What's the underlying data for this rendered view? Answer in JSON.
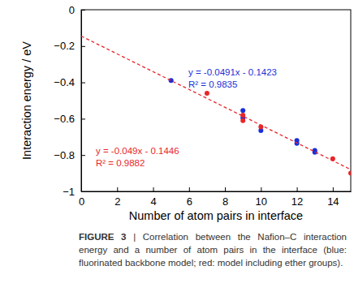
{
  "chart_data": {
    "type": "scatter",
    "x_label": "Number of atom pairs in interface",
    "y_label": "Interaction energy / eV",
    "xlim": [
      0,
      15
    ],
    "xticks": [
      0,
      2,
      4,
      6,
      8,
      10,
      12,
      14
    ],
    "ylim": [
      -1,
      0
    ],
    "yticks": [
      {
        "value": -1,
        "label": "−1"
      },
      {
        "value": -0.8,
        "label": "−0.8"
      },
      {
        "value": -0.6,
        "label": "−0.6"
      },
      {
        "value": -0.4,
        "label": "−0.4"
      },
      {
        "value": -0.2,
        "label": "−0.2"
      },
      0
    ],
    "grid": false,
    "series": [
      {
        "color": "#1a2fd8",
        "marker": "circle",
        "x": [
          5,
          9,
          9,
          10,
          12,
          12,
          13,
          13
        ],
        "values": [
          -0.39,
          -0.555,
          -0.595,
          -0.665,
          -0.72,
          -0.735,
          -0.775,
          -0.785
        ]
      },
      {
        "color": "#e8262a",
        "marker": "circle",
        "x": [
          7,
          9,
          9,
          10,
          14,
          15
        ],
        "values": [
          -0.46,
          -0.58,
          -0.61,
          -0.645,
          -0.82,
          -0.9
        ]
      },
      {
        "type": "line",
        "color": "#e8262a",
        "line_style": "dashed",
        "x": [
          0,
          15
        ],
        "values": [
          -0.145,
          -0.88
        ]
      }
    ],
    "annotations": [
      {
        "text": "y = -0.0491x - 0.1423",
        "color": "#1a2fd8"
      },
      {
        "text": "R² = 0.9835",
        "color": "#1a2fd8"
      },
      {
        "text": "y = -0.049x - 0.1446",
        "color": "#e8262a"
      },
      {
        "text": "R² = 0.9882",
        "color": "#e8262a"
      }
    ],
    "caption": {
      "label": "FIGURE 3",
      "text": "| Correlation between the Nafion–C interaction energy and a number of atom pairs in the interface (blue: fluorinated backbone model; red: model including ether groups)."
    }
  }
}
